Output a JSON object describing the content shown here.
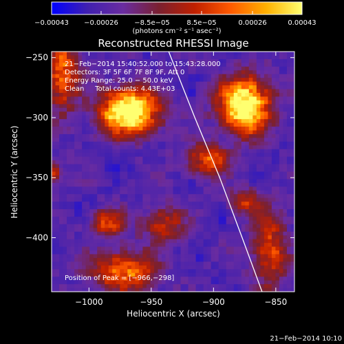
{
  "chart_data": {
    "type": "heatmap",
    "title": "Reconstructed RHESSI Image",
    "xlabel": "Heliocentric X (arcsec)",
    "ylabel": "Heliocentric Y (arcsec)",
    "xlim": [
      -1030,
      -835
    ],
    "ylim": [
      -445,
      -245
    ],
    "x_ticks": [
      -1000,
      -950,
      -900,
      -850
    ],
    "x_tick_labels": [
      "−1000",
      "−950",
      "−900",
      "−850"
    ],
    "y_ticks": [
      -250,
      -300,
      -350,
      -400
    ],
    "y_tick_labels": [
      "−250",
      "−300",
      "−350",
      "−400"
    ],
    "colorbar": {
      "min": -0.00043,
      "max": 0.00043,
      "tick_values": [
        -0.00043,
        -0.00026,
        -8.5e-05,
        8.5e-05,
        0.00026,
        0.00043
      ],
      "tick_labels": [
        "−0.00043",
        "−0.00026",
        "−8.5e−05",
        "8.5e−05",
        "0.00026",
        "0.00043"
      ],
      "units": "(photons cm⁻² s⁻¹ asec⁻²)"
    },
    "annotations": [
      "21−Feb−2014 15:40:52.000 to 15:43:28.000",
      "Detectors: 3F 5F 6F 7F 8F 9F, Att 0",
      "Energy Range: 25.0 − 50.0 keV",
      "Clean     Total counts: 4.43E+03"
    ],
    "peak_label": "Position of Peak = [−966,−298]",
    "peak": [
      -966,
      -298
    ],
    "limb_curve": [
      [
        -936,
        -245
      ],
      [
        -915,
        -300
      ],
      [
        -895,
        -350
      ],
      [
        -877,
        -400
      ],
      [
        -861,
        -445
      ]
    ],
    "sources": [
      {
        "x": -968,
        "y": -295,
        "sx": 16,
        "sy": 13,
        "amp": 1.0
      },
      {
        "x": -875,
        "y": -290,
        "sx": 14,
        "sy": 16,
        "amp": 0.95
      },
      {
        "x": -1022,
        "y": -262,
        "sx": 10,
        "sy": 22,
        "amp": 0.55
      },
      {
        "x": -905,
        "y": -335,
        "sx": 12,
        "sy": 9,
        "amp": 0.5
      },
      {
        "x": -972,
        "y": -428,
        "sx": 18,
        "sy": 12,
        "amp": 0.55
      },
      {
        "x": -985,
        "y": -388,
        "sx": 10,
        "sy": 8,
        "amp": 0.45
      },
      {
        "x": -940,
        "y": -388,
        "sx": 12,
        "sy": 10,
        "amp": 0.4
      },
      {
        "x": -855,
        "y": -410,
        "sx": 10,
        "sy": 22,
        "amp": 0.45
      },
      {
        "x": -875,
        "y": -370,
        "sx": 8,
        "sy": 8,
        "amp": 0.35
      },
      {
        "x": -1030,
        "y": -345,
        "sx": 6,
        "sy": 6,
        "amp": 0.4
      }
    ],
    "grid": false,
    "legend": "none"
  },
  "footer": {
    "date": "21−Feb−2014 10:10"
  },
  "colors": {
    "background": "#000000",
    "foreground": "#ffffff",
    "colormap": [
      "#0000ff",
      "#4020b0",
      "#6a2ca0",
      "#7a2030",
      "#c02000",
      "#ff5a00",
      "#ffb000",
      "#ffff70"
    ]
  }
}
